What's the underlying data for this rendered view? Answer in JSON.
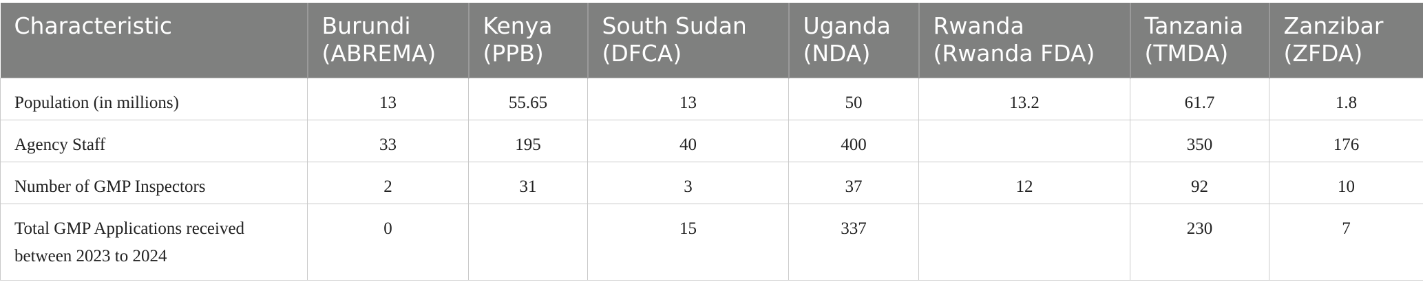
{
  "table": {
    "header": [
      "Characteristic",
      "Burundi\n(ABREMA)",
      "Kenya\n(PPB)",
      "South Sudan\n(DFCA)",
      "Uganda\n(NDA)",
      "Rwanda\n(Rwanda FDA)",
      "Tanzania\n(TMDA)",
      "Zanzibar\n(ZFDA)"
    ],
    "rows": [
      [
        "Population (in millions)",
        13,
        55.65,
        13,
        50,
        13.2,
        61.7,
        1.8
      ],
      [
        "Agency Staff",
        33,
        195,
        40,
        400,
        null,
        350,
        176
      ],
      [
        "Number of GMP Inspectors",
        2,
        31,
        3,
        37,
        12,
        92,
        10
      ],
      [
        "Total GMP Applications received between 2023 to 2024",
        0,
        null,
        15,
        337,
        null,
        230,
        7
      ]
    ]
  }
}
